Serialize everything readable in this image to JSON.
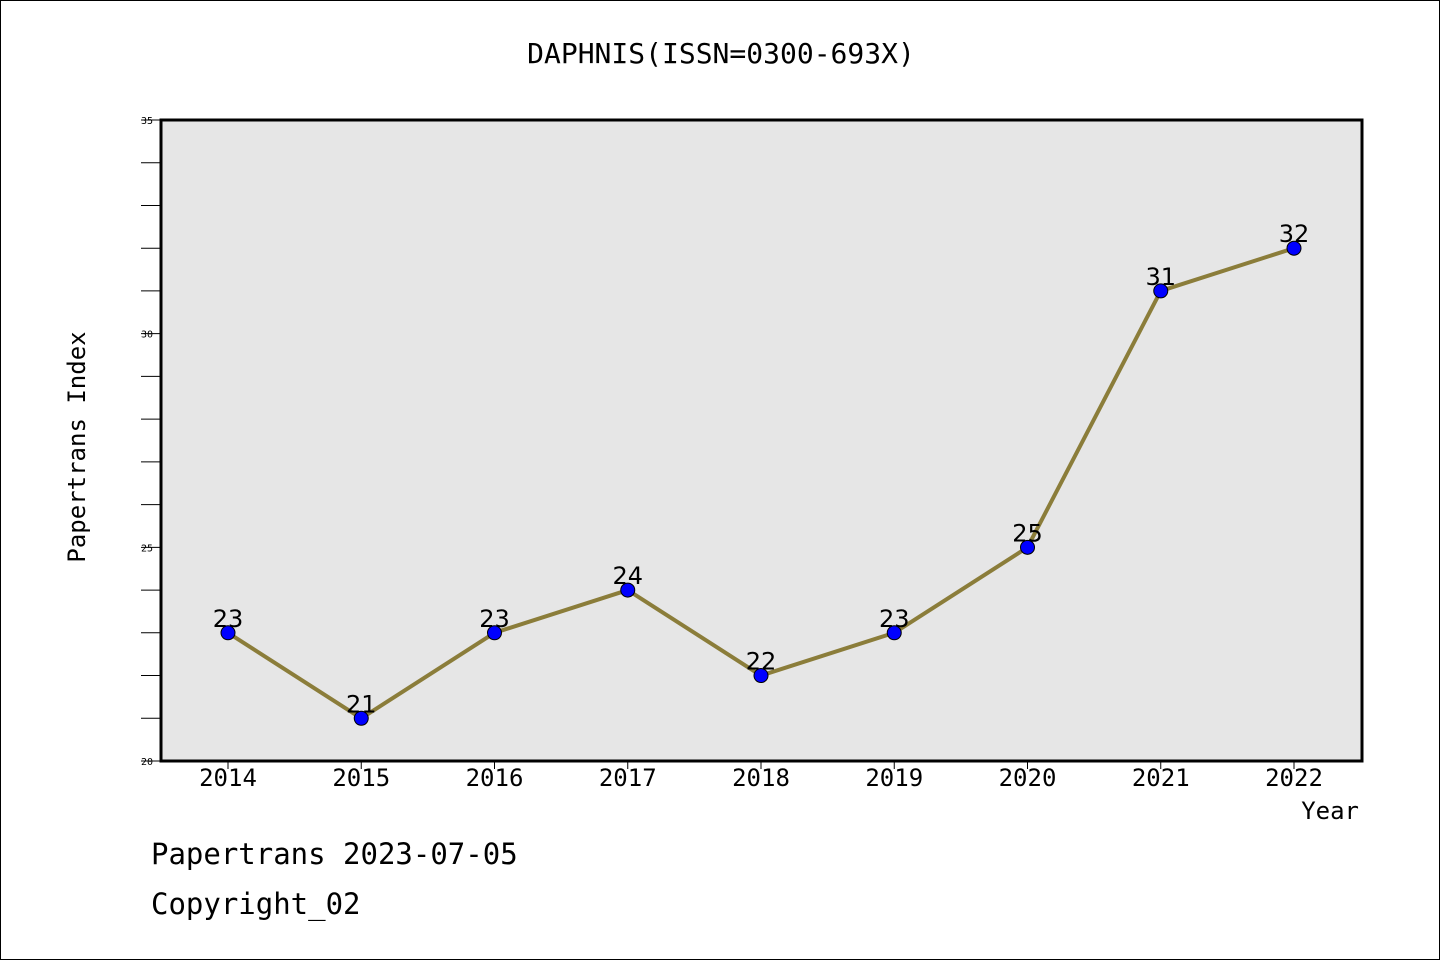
{
  "chart_data": {
    "type": "line",
    "title": "DAPHNIS(ISSN=0300-693X)",
    "xlabel": "Year",
    "ylabel": "Papertrans Index",
    "categories": [
      "2014",
      "2015",
      "2016",
      "2017",
      "2018",
      "2019",
      "2020",
      "2021",
      "2022"
    ],
    "series": [
      {
        "values": [
          23,
          21,
          23,
          24,
          22,
          23,
          25,
          31,
          32
        ]
      }
    ],
    "ylim": [
      20,
      35
    ],
    "yticks": [
      20,
      25,
      30,
      35
    ],
    "grid": false,
    "colors": {
      "line": "#8b7d3a",
      "marker": "#0000ff",
      "plot_bg": "#e6e6e6"
    }
  },
  "footer": {
    "line1": "Papertrans 2023-07-05",
    "line2": "Copyright_02"
  }
}
